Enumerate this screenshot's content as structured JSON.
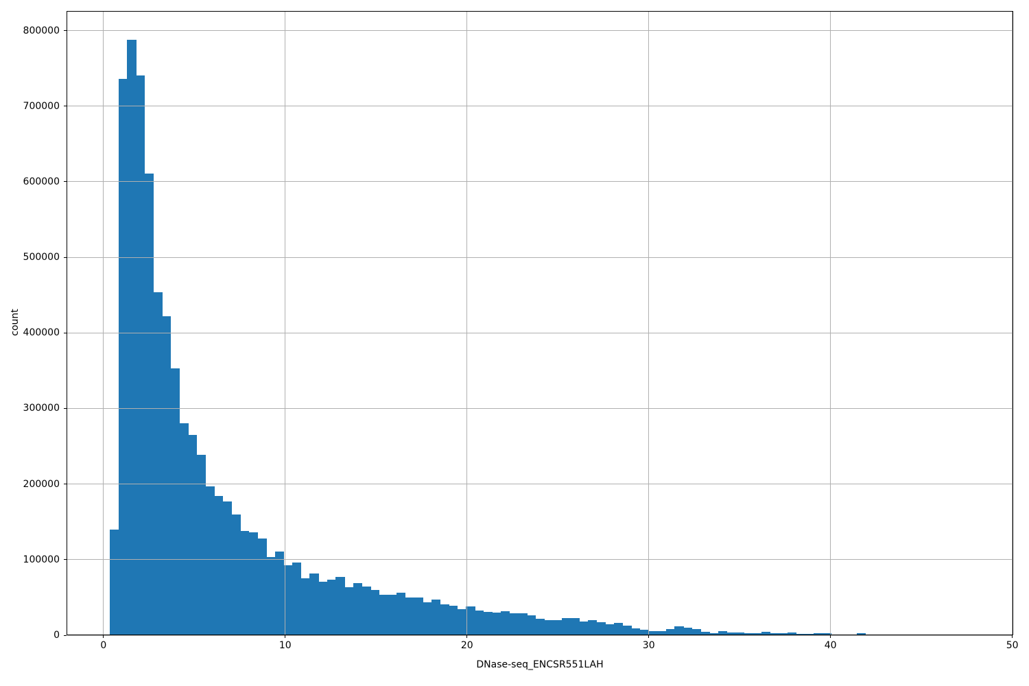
{
  "figure": {
    "background": "#ffffff",
    "bar_color": "#1f77b4",
    "grid_color": "#b0b0b0",
    "spine_color": "#000000",
    "tick_color": "#000000"
  },
  "chart_data": {
    "type": "bar",
    "subtype": "histogram",
    "title": "",
    "xlabel": "DNase-seq_ENCSR551LAH",
    "ylabel": "count",
    "grid": true,
    "legend": false,
    "xlim": [
      -2.03,
      50.05
    ],
    "ylim": [
      0,
      826000
    ],
    "x_ticks": [
      0,
      10,
      20,
      30,
      40,
      50
    ],
    "x_tick_labels": [
      "0",
      "10",
      "20",
      "30",
      "40",
      "50"
    ],
    "y_ticks": [
      0,
      100000,
      200000,
      300000,
      400000,
      500000,
      600000,
      700000,
      800000
    ],
    "y_tick_labels": [
      "0",
      "100000",
      "200000",
      "300000",
      "400000",
      "500000",
      "600000",
      "700000",
      "800000"
    ],
    "bins": {
      "start": 0.35,
      "width": 0.478
    },
    "counts": [
      139000,
      735000,
      787000,
      740000,
      610000,
      453000,
      421000,
      352000,
      280000,
      264000,
      238000,
      196000,
      183000,
      176000,
      159000,
      137000,
      135000,
      127000,
      103000,
      110000,
      92000,
      95000,
      74000,
      81000,
      70000,
      73000,
      76000,
      63000,
      68000,
      64000,
      59000,
      53000,
      53000,
      55000,
      49000,
      49000,
      43000,
      46000,
      40000,
      38000,
      34000,
      37000,
      32000,
      30000,
      29000,
      31000,
      28000,
      28000,
      25000,
      21000,
      19000,
      19000,
      22000,
      22000,
      17000,
      19000,
      16000,
      14000,
      15000,
      12000,
      8000,
      6000,
      5000,
      4500,
      7000,
      10500,
      9000,
      7500,
      3600,
      2100,
      4500,
      3000,
      3000,
      1500,
      1500,
      3900,
      1500,
      1500,
      2400,
      1000,
      1000,
      2000,
      1600,
      0,
      0,
      0,
      1800
    ]
  }
}
